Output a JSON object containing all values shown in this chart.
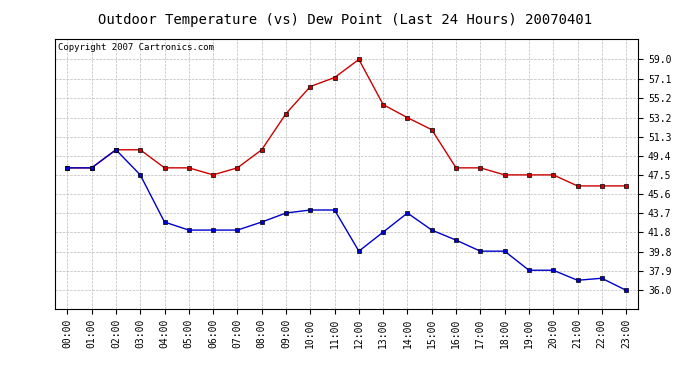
{
  "title": "Outdoor Temperature (vs) Dew Point (Last 24 Hours) 20070401",
  "copyright_text": "Copyright 2007 Cartronics.com",
  "hours": [
    "00:00",
    "01:00",
    "02:00",
    "03:00",
    "04:00",
    "05:00",
    "06:00",
    "07:00",
    "08:00",
    "09:00",
    "10:00",
    "11:00",
    "12:00",
    "13:00",
    "14:00",
    "15:00",
    "16:00",
    "17:00",
    "18:00",
    "19:00",
    "20:00",
    "21:00",
    "22:00",
    "23:00"
  ],
  "temp": [
    48.2,
    48.2,
    50.0,
    50.0,
    48.2,
    48.2,
    47.5,
    48.2,
    50.0,
    53.6,
    56.3,
    57.2,
    59.0,
    54.5,
    53.2,
    52.0,
    48.2,
    48.2,
    47.5,
    47.5,
    47.5,
    46.4,
    46.4,
    46.4
  ],
  "dew": [
    48.2,
    48.2,
    50.0,
    47.5,
    42.8,
    42.0,
    42.0,
    42.0,
    42.8,
    43.7,
    44.0,
    44.0,
    39.9,
    41.8,
    43.7,
    42.0,
    41.0,
    39.9,
    39.9,
    38.0,
    38.0,
    37.0,
    37.2,
    36.0
  ],
  "temp_color": "#cc0000",
  "dew_color": "#0000cc",
  "marker": "s",
  "marker_size": 3,
  "ylim_min": 34.1,
  "ylim_max": 61.0,
  "yticks": [
    36.0,
    37.9,
    39.8,
    41.8,
    43.7,
    45.6,
    47.5,
    49.4,
    51.3,
    53.2,
    55.2,
    57.1,
    59.0
  ],
  "bg_color": "#ffffff",
  "grid_color": "#bbbbbb",
  "title_fontsize": 10,
  "copyright_fontsize": 6.5,
  "tick_fontsize": 7
}
